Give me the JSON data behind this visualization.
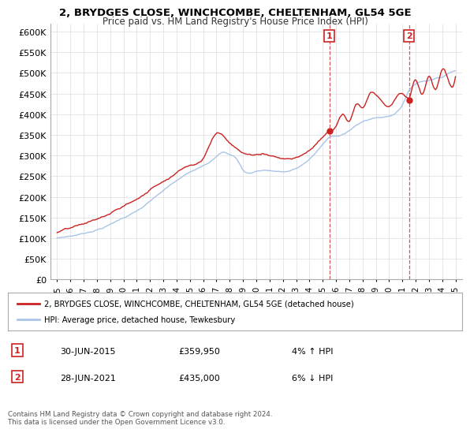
{
  "title_line1": "2, BRYDGES CLOSE, WINCHCOMBE, CHELTENHAM, GL54 5GE",
  "title_line2": "Price paid vs. HM Land Registry's House Price Index (HPI)",
  "ylim": [
    0,
    620000
  ],
  "yticks": [
    0,
    50000,
    100000,
    150000,
    200000,
    250000,
    300000,
    350000,
    400000,
    450000,
    500000,
    550000,
    600000
  ],
  "ytick_labels": [
    "£0",
    "£50K",
    "£100K",
    "£150K",
    "£200K",
    "£250K",
    "£300K",
    "£350K",
    "£400K",
    "£450K",
    "£500K",
    "£550K",
    "£600K"
  ],
  "legend_entry1": "2, BRYDGES CLOSE, WINCHCOMBE, CHELTENHAM, GL54 5GE (detached house)",
  "legend_entry2": "HPI: Average price, detached house, Tewkesbury",
  "sale1_date": "30-JUN-2015",
  "sale1_price": "£359,950",
  "sale1_hpi": "4% ↑ HPI",
  "sale1_label": "1",
  "sale2_date": "28-JUN-2021",
  "sale2_price": "£435,000",
  "sale2_hpi": "6% ↓ HPI",
  "sale2_label": "2",
  "footer": "Contains HM Land Registry data © Crown copyright and database right 2024.\nThis data is licensed under the Open Government Licence v3.0.",
  "bg_color": "#ffffff",
  "grid_color": "#dddddd",
  "hpi_line_color": "#aac4e8",
  "price_line_color": "#cc2222",
  "sale_marker_color": "#cc2222",
  "dashed_line_color": "#cc3333",
  "sale1_year": 2015.5,
  "sale1_price_val": 359950,
  "sale2_year": 2021.5,
  "sale2_price_val": 435000
}
